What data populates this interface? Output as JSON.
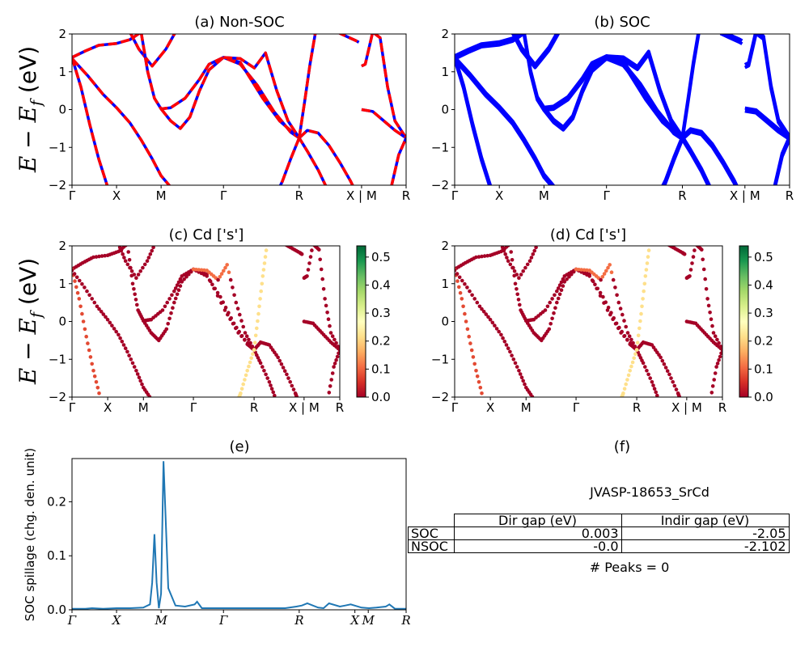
{
  "kpoints": [
    "Γ",
    "X",
    "M",
    "Γ",
    "R",
    "X | M",
    "R"
  ],
  "kpoints_spillage": [
    "Γ",
    "X",
    "M",
    "Γ",
    "R",
    "X",
    "M",
    "R"
  ],
  "colors": {
    "nonsoc_solid": "#0000ff",
    "nonsoc_dash": "#ff0000",
    "soc": "#0000ff",
    "spillage": "#1f77b4"
  },
  "colorbar": {
    "colormap": "RdYlGn",
    "ticks": [
      "0.0",
      "0.1",
      "0.2",
      "0.3",
      "0.4",
      "0.5"
    ],
    "max": 0.54
  },
  "chart_data": [
    {
      "type": "line",
      "title": "(a) Non-SOC",
      "ylabel": "E − E_f (eV)",
      "xlim_segments": 6,
      "ylim": [
        -2,
        2
      ],
      "yticks": [
        "−2",
        "−1",
        "0",
        "1",
        "2"
      ],
      "style": "blue solid overlaid with red dashed",
      "bands": [
        [
          [
            0,
            1.38
          ],
          [
            0.3,
            1.55
          ],
          [
            0.6,
            1.7
          ],
          [
            1,
            1.75
          ],
          [
            1.3,
            1.85
          ],
          [
            1.55,
            2.05
          ]
        ],
        [
          [
            0,
            1.38
          ],
          [
            0.2,
            0.6
          ],
          [
            0.4,
            -0.4
          ],
          [
            0.6,
            -1.3
          ],
          [
            0.8,
            -2.05
          ]
        ],
        [
          [
            0,
            1.35
          ],
          [
            0.35,
            0.9
          ],
          [
            0.7,
            0.4
          ],
          [
            1,
            0.05
          ],
          [
            1.3,
            -0.35
          ],
          [
            1.55,
            -0.8
          ],
          [
            1.8,
            -1.3
          ],
          [
            2,
            -1.75
          ],
          [
            2.2,
            -2.05
          ]
        ],
        [
          [
            1.3,
            2.05
          ],
          [
            1.5,
            1.6
          ],
          [
            1.8,
            1.15
          ],
          [
            2.1,
            1.6
          ],
          [
            2.3,
            2.05
          ]
        ],
        [
          [
            1.55,
            2.05
          ],
          [
            1.7,
            1.0
          ],
          [
            1.85,
            0.3
          ],
          [
            2,
            0.02
          ],
          [
            2.2,
            0.05
          ],
          [
            2.5,
            0.3
          ],
          [
            2.8,
            0.8
          ],
          [
            3,
            1.2
          ],
          [
            3.3,
            1.38
          ],
          [
            3.6,
            1.2
          ],
          [
            3.9,
            0.65
          ],
          [
            4.2,
            -0.05
          ],
          [
            4.5,
            -0.6
          ],
          [
            4.65,
            -0.75
          ]
        ],
        [
          [
            2,
            0.02
          ],
          [
            2.2,
            -0.3
          ],
          [
            2.4,
            -0.5
          ],
          [
            2.6,
            -0.2
          ],
          [
            2.8,
            0.5
          ],
          [
            3,
            1.05
          ],
          [
            3.3,
            1.38
          ],
          [
            3.6,
            1.25
          ],
          [
            4,
            0.3
          ],
          [
            4.3,
            -0.3
          ],
          [
            4.65,
            -0.75
          ]
        ],
        [
          [
            3.3,
            1.38
          ],
          [
            3.6,
            1.35
          ],
          [
            3.85,
            1.1
          ],
          [
            4.05,
            1.5
          ],
          [
            4.25,
            0.5
          ],
          [
            4.45,
            -0.3
          ],
          [
            4.65,
            -0.75
          ],
          [
            4.8,
            -1.1
          ],
          [
            5,
            -1.6
          ],
          [
            5.15,
            -2.05
          ]
        ],
        [
          [
            4.65,
            -0.75
          ],
          [
            4.8,
            -0.55
          ],
          [
            5,
            -0.62
          ],
          [
            5.2,
            -0.95
          ],
          [
            5.4,
            -1.4
          ],
          [
            5.6,
            -1.9
          ],
          [
            5.65,
            -2.05
          ]
        ],
        [
          [
            4.65,
            -0.75
          ],
          [
            4.5,
            -1.3
          ],
          [
            4.35,
            -1.9
          ],
          [
            4.3,
            -2.05
          ]
        ],
        [
          [
            4.65,
            -0.75
          ],
          [
            4.75,
            0.2
          ],
          [
            4.85,
            1.2
          ],
          [
            4.95,
            2.05
          ]
        ],
        [
          [
            5.35,
            2.05
          ],
          [
            5.5,
            1.95
          ],
          [
            5.7,
            1.82
          ],
          [
            5.75,
            1.78
          ]
        ],
        [
          [
            5.8,
            1.15
          ],
          [
            5.9,
            1.2
          ],
          [
            6.1,
            2.05
          ],
          [
            6.3,
            1.9
          ],
          [
            6.5,
            0.6
          ],
          [
            6.7,
            -0.3
          ],
          [
            7,
            -0.75
          ]
        ],
        [
          [
            5.8,
            0.0
          ],
          [
            6.1,
            -0.05
          ],
          [
            6.4,
            -0.3
          ],
          [
            6.7,
            -0.55
          ],
          [
            7,
            -0.75
          ]
        ],
        [
          [
            6.6,
            -2.05
          ],
          [
            6.8,
            -1.2
          ],
          [
            7,
            -0.75
          ]
        ]
      ]
    },
    {
      "type": "line",
      "title": "(b) SOC",
      "ylim": [
        -2,
        2
      ],
      "yticks": [
        "−2",
        "−1",
        "0",
        "1",
        "2"
      ],
      "style": "blue solid, thickened (split bands)"
    },
    {
      "type": "scatter",
      "title": "(c)  Cd ['s']",
      "ylabel": "E − E_f (eV)",
      "ylim": [
        -2,
        2
      ],
      "yticks": [
        "−2",
        "−1",
        "0",
        "1",
        "2"
      ],
      "color_by": "projected weight",
      "clim": [
        0,
        0.54
      ]
    },
    {
      "type": "scatter",
      "title": "(d) Cd ['s']",
      "ylim": [
        -2,
        2
      ],
      "yticks": [
        "−2",
        "−1",
        "0",
        "1",
        "2"
      ],
      "color_by": "projected weight",
      "clim": [
        0,
        0.54
      ]
    },
    {
      "type": "line",
      "title": "(e)",
      "ylabel": "SOC spillage (chg. den. unit)",
      "ylim": [
        0,
        0.28
      ],
      "yticks": [
        "0.0",
        "0.1",
        "0.2"
      ],
      "x": [
        0,
        0.3,
        0.45,
        0.7,
        1,
        1.3,
        1.6,
        1.75,
        1.8,
        1.85,
        1.9,
        1.95,
        2.0,
        2.05,
        2.15,
        2.3,
        2.5,
        2.7,
        2.75,
        2.85,
        3.2,
        3.7,
        4.0,
        4.4,
        4.6,
        4.7,
        4.8,
        5.0,
        5.1,
        5.2,
        5.4,
        5.5,
        5.6,
        5.8,
        6.0,
        6.2,
        6.3,
        6.45,
        6.5,
        6.55,
        6.7,
        7.0
      ],
      "y": [
        0.002,
        0.002,
        0.003,
        0.002,
        0.003,
        0.003,
        0.004,
        0.01,
        0.05,
        0.14,
        0.05,
        0.003,
        0.03,
        0.275,
        0.04,
        0.008,
        0.006,
        0.01,
        0.015,
        0.003,
        0.003,
        0.003,
        0.003,
        0.003,
        0.006,
        0.008,
        0.012,
        0.004,
        0.003,
        0.012,
        0.006,
        0.008,
        0.01,
        0.004,
        0.003,
        0.004,
        0.005,
        0.006,
        0.008,
        0.01,
        0.002,
        0.002
      ]
    }
  ],
  "panel_f": {
    "title": "(f)",
    "material": "JVASP-18653_SrCd",
    "table": {
      "headers": [
        "Dir gap (eV)",
        "Indir gap (eV)"
      ],
      "rows": [
        {
          "label": "SOC",
          "dir": "0.003",
          "indir": "-2.05"
        },
        {
          "label": "NSOC",
          "dir": "-0.0",
          "indir": "-2.102"
        }
      ]
    },
    "peaks": "# Peaks = 0"
  }
}
